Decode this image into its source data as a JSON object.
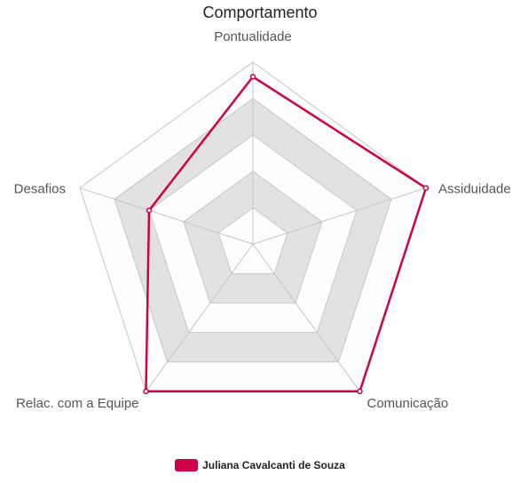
{
  "chart_data": {
    "type": "radar",
    "title": "Comportamento",
    "axes": [
      "Pontualidade",
      "Assiduidade",
      "Comunicação",
      "Relac. com a Equipe",
      "Desafios"
    ],
    "rlim": [
      0,
      5
    ],
    "grid": true,
    "legend_position": "bottom",
    "series": [
      {
        "name": "Juliana Cavalcanti de Souza",
        "values": [
          4.6,
          5,
          5,
          5,
          3
        ],
        "color": "#d1004a"
      }
    ]
  }
}
